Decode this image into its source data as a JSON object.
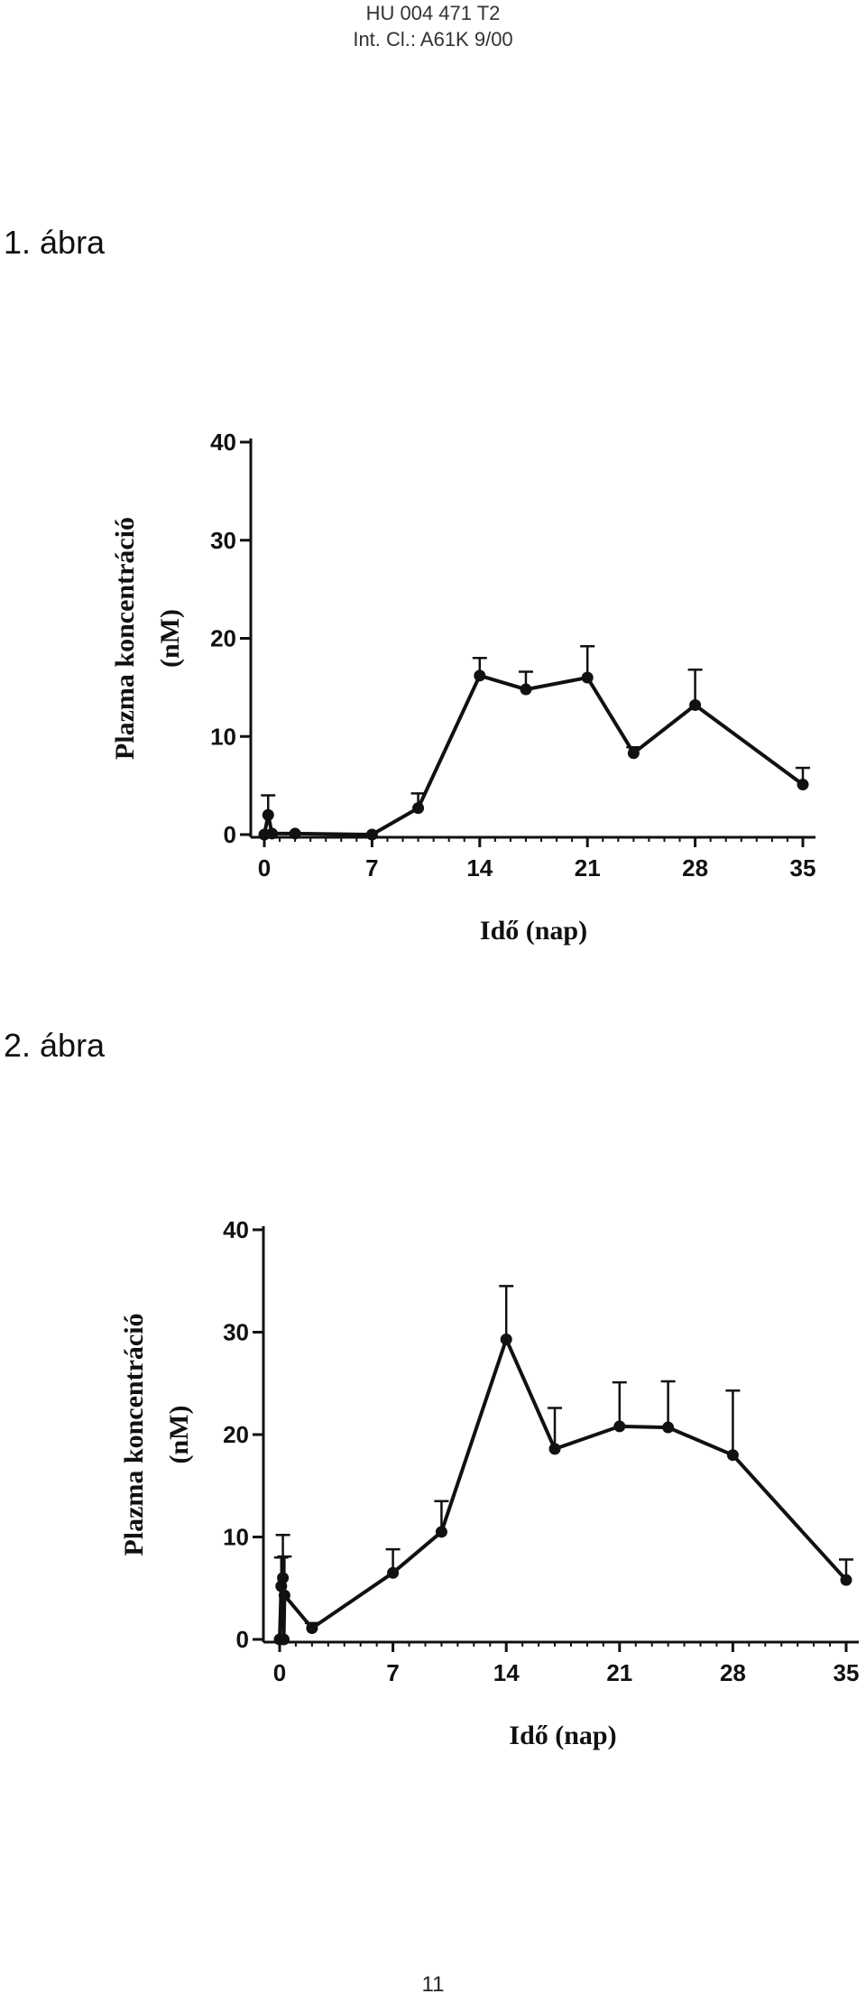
{
  "header": {
    "line1": "HU 004 471 T2",
    "line2": "Int. Cl.: A61K 9/00"
  },
  "page_number": "11",
  "line_color": "#111111",
  "chart_data": [
    {
      "label": "1. ábra",
      "type": "line",
      "xlabel": "Idő (nap)",
      "ylabel_line1": "Plazma koncentráció",
      "ylabel_line2": "(nM)",
      "xlim": [
        0,
        35
      ],
      "ylim": [
        0,
        40
      ],
      "xticks": [
        0,
        7,
        14,
        21,
        28,
        35
      ],
      "yticks": [
        0,
        10,
        20,
        30,
        40
      ],
      "grid": false,
      "legend": "none",
      "points": [
        {
          "x": 0,
          "y": 0,
          "err": 0
        },
        {
          "x": 0.25,
          "y": 2,
          "err": 2
        },
        {
          "x": 0.5,
          "y": 0.1,
          "err": 0
        },
        {
          "x": 2,
          "y": 0.1,
          "err": 0
        },
        {
          "x": 7,
          "y": 0,
          "err": 0
        },
        {
          "x": 10,
          "y": 2.7,
          "err": 1.5
        },
        {
          "x": 14,
          "y": 16.2,
          "err": 1.8
        },
        {
          "x": 17,
          "y": 14.8,
          "err": 1.8
        },
        {
          "x": 21,
          "y": 16,
          "err": 3.2
        },
        {
          "x": 24,
          "y": 8.3,
          "err": 0.6
        },
        {
          "x": 28,
          "y": 13.2,
          "err": 3.6
        },
        {
          "x": 35,
          "y": 5.1,
          "err": 1.7
        }
      ]
    },
    {
      "label": "2. ábra",
      "type": "line",
      "xlabel": "Idő (nap)",
      "ylabel_line1": "Plazma koncentráció",
      "ylabel_line2": "(nM)",
      "xlim": [
        0,
        35
      ],
      "ylim": [
        0,
        40
      ],
      "xticks": [
        0,
        7,
        14,
        21,
        28,
        35
      ],
      "yticks": [
        0,
        10,
        20,
        30,
        40
      ],
      "grid": false,
      "legend": "none",
      "points": [
        {
          "x": 0,
          "y": 0,
          "err": 0
        },
        {
          "x": 0.1,
          "y": 5.2,
          "err": 2.8
        },
        {
          "x": 0.2,
          "y": 6,
          "err": 4.2
        },
        {
          "x": 0.25,
          "y": 0,
          "err": 0
        },
        {
          "x": 0.3,
          "y": 4.3,
          "err": 3.8
        },
        {
          "x": 2,
          "y": 1.1,
          "err": 0.5
        },
        {
          "x": 7,
          "y": 6.5,
          "err": 2.3
        },
        {
          "x": 10,
          "y": 10.5,
          "err": 3
        },
        {
          "x": 14,
          "y": 29.3,
          "err": 5.2
        },
        {
          "x": 17,
          "y": 18.6,
          "err": 4
        },
        {
          "x": 21,
          "y": 20.8,
          "err": 4.3
        },
        {
          "x": 24,
          "y": 20.7,
          "err": 4.5
        },
        {
          "x": 28,
          "y": 18,
          "err": 6.3
        },
        {
          "x": 35,
          "y": 5.8,
          "err": 2
        }
      ]
    }
  ]
}
